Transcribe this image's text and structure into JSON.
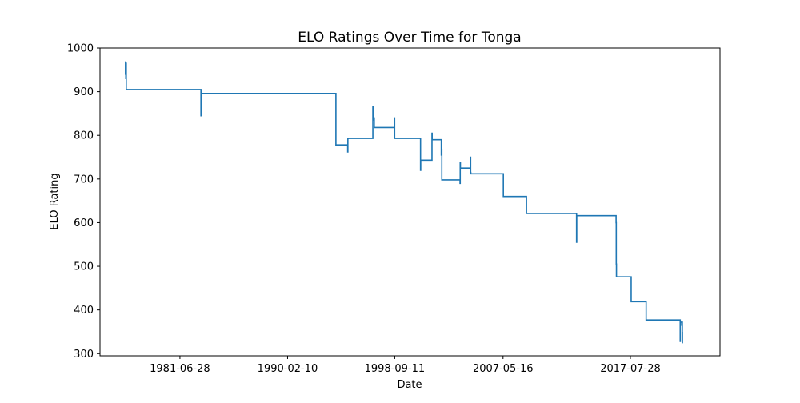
{
  "chart_data": {
    "type": "line",
    "title": "ELO Ratings Over Time for Tonga",
    "xlabel": "Date",
    "ylabel": "ELO Rating",
    "x_ticks": [
      "1981-06-28",
      "1990-02-10",
      "1998-09-11",
      "2007-05-16",
      "2017-07-28"
    ],
    "y_ticks": [
      "300",
      "400",
      "500",
      "600",
      "700",
      "800",
      "900",
      "1000"
    ],
    "xlim": [
      "1975-02-01",
      "2024-10-01"
    ],
    "ylim": [
      295,
      1000
    ],
    "grid": false,
    "legend": "none",
    "line_color": "#1f77b4",
    "series": [
      {
        "x": [
          "1977-02-01",
          "1977-02-15",
          "1977-02-20",
          "1977-02-25",
          "1977-03-05",
          "1977-03-10",
          "1977-03-15",
          "1977-04-01",
          "1983-03-01",
          "1983-03-05",
          "1983-03-10",
          "1983-03-15",
          "1993-12-20",
          "1993-12-25",
          "1994-12-01",
          "1994-12-05",
          "1994-12-10",
          "1995-01-01",
          "1996-12-01",
          "1996-12-10",
          "1997-01-01",
          "1997-01-05",
          "1997-01-10",
          "1997-01-20",
          "1997-02-01",
          "1998-09-01",
          "1998-09-05",
          "1998-09-08",
          "1998-09-15",
          "2000-10-01",
          "2000-10-05",
          "2000-10-10",
          "2001-09-01",
          "2001-09-05",
          "2001-09-10",
          "2002-06-01",
          "2002-06-05",
          "2002-06-10",
          "2002-06-20",
          "2003-12-01",
          "2003-12-05",
          "2003-12-10",
          "2003-12-15",
          "2004-10-01",
          "2004-10-05",
          "2004-10-10",
          "2004-10-15",
          "2007-05-20",
          "2007-05-25",
          "2009-04-01",
          "2013-04-01",
          "2013-04-05",
          "2013-04-10",
          "2016-06-01",
          "2016-06-05",
          "2016-06-10",
          "2016-06-15",
          "2017-08-20",
          "2018-11-01",
          "2021-07-20",
          "2021-07-25",
          "2021-07-28",
          "2021-08-05",
          "2021-08-10",
          "2021-09-20",
          "2021-09-25",
          "2021-09-28"
        ],
        "y": [
          968,
          940,
          962,
          930,
          965,
          905,
          905,
          905,
          905,
          845,
          896,
          896,
          896,
          778,
          778,
          762,
          793,
          793,
          793,
          865,
          865,
          835,
          840,
          818,
          818,
          818,
          840,
          793,
          793,
          793,
          720,
          743,
          743,
          805,
          790,
          790,
          755,
          768,
          698,
          698,
          690,
          738,
          725,
          725,
          750,
          715,
          712,
          712,
          660,
          621,
          621,
          555,
          616,
          616,
          600,
          505,
          476,
          419,
          377,
          377,
          328,
          372,
          365,
          372,
          372,
          325,
          350
        ]
      }
    ]
  }
}
